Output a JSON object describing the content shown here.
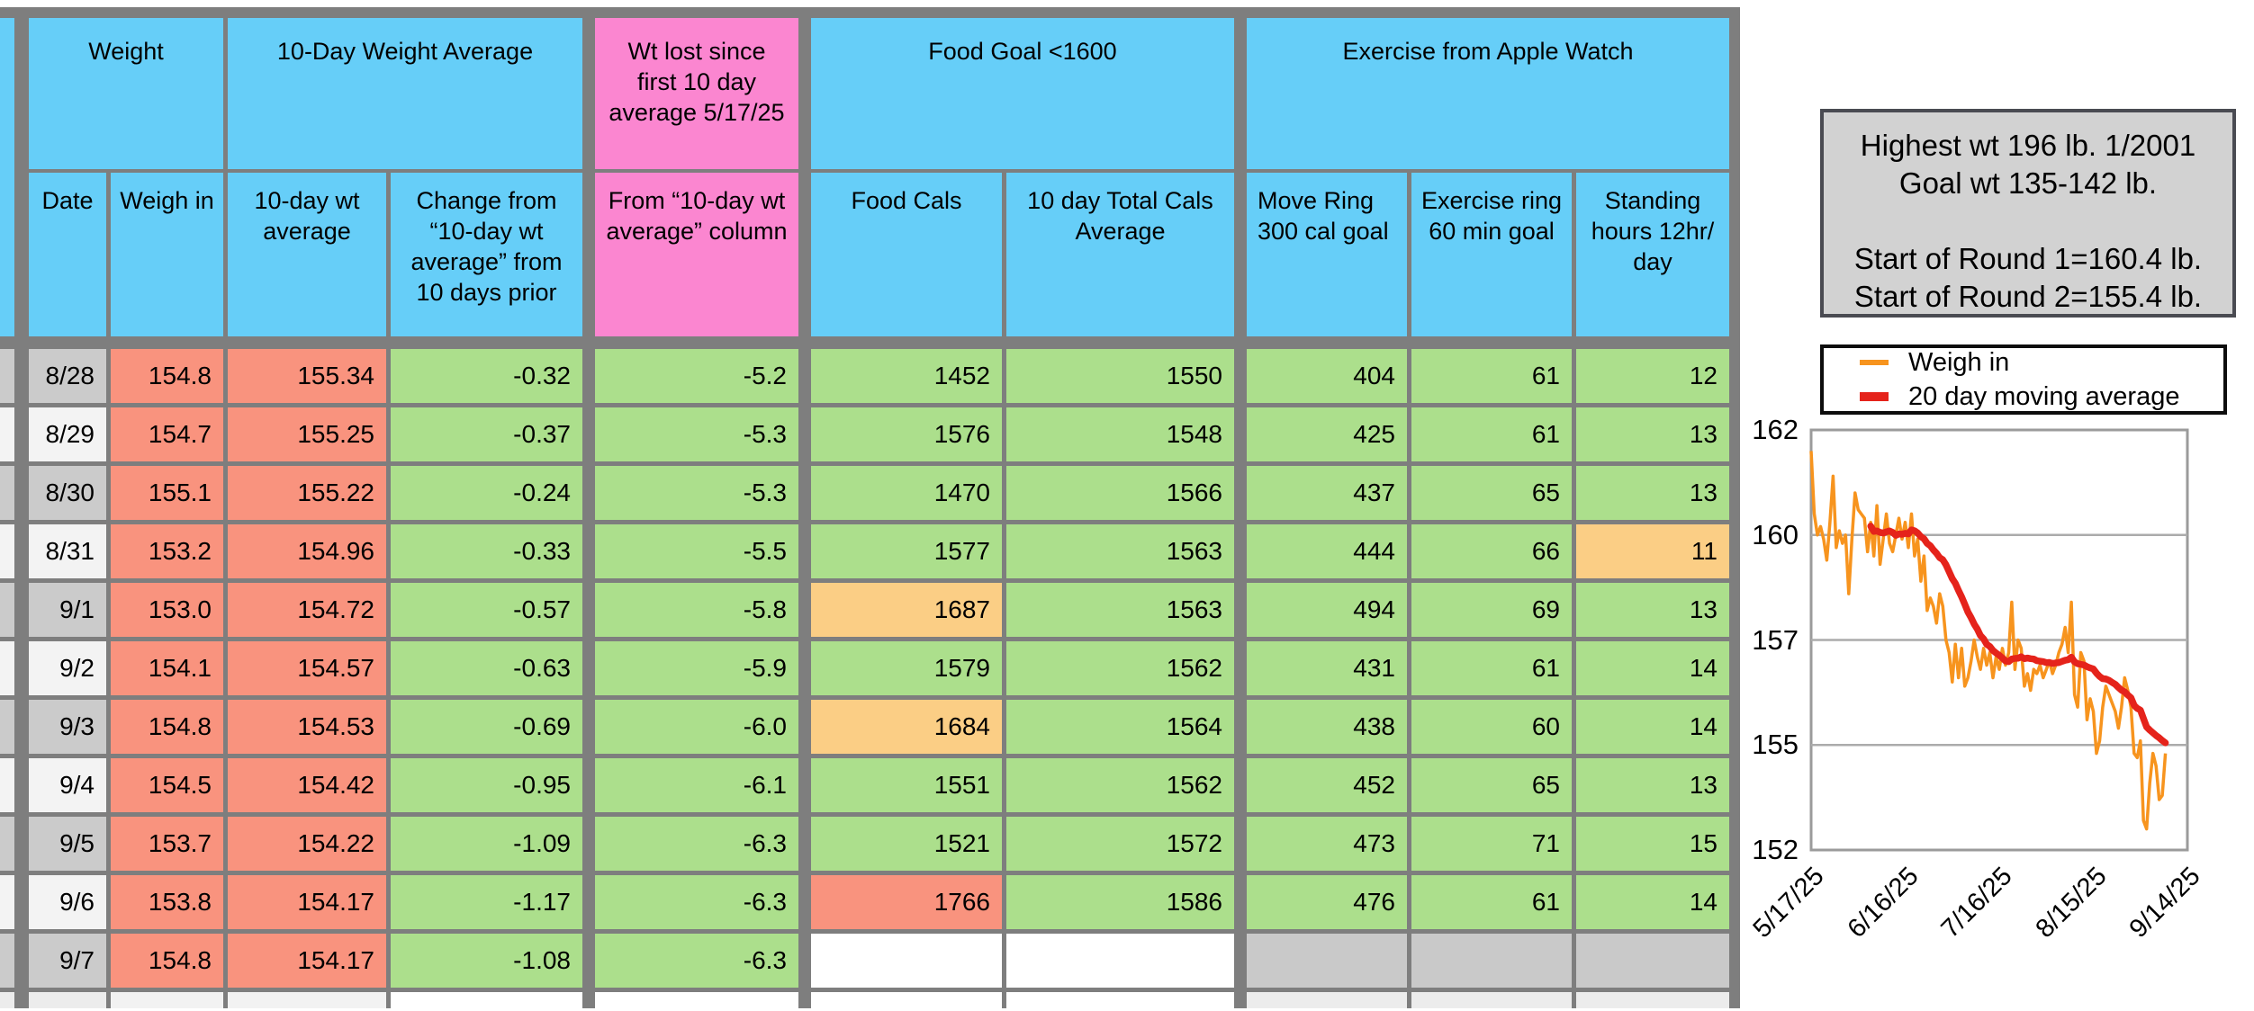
{
  "table": {
    "groups": {
      "weight": "Weight",
      "avg10": "10-Day Weight Average",
      "lost": "Wt lost since first 10 day average 5/17/25",
      "food": "Food Goal <1600",
      "exercise": "Exercise from Apple Watch"
    },
    "columns": {
      "date": "Date",
      "weigh": "Weigh in",
      "avg": "10-day wt average",
      "change": "Change from “10-day wt average” from 10 days prior",
      "lost": "From “10-day wt average” column",
      "food": "Food Cals",
      "total": "10 day Total Cals Average",
      "move": "Move Ring 300 cal goal",
      "ex": "Exercise ring 60 min goal",
      "stand": "Standing hours 12hr/ day"
    },
    "rows": [
      {
        "date": "8/28",
        "weigh": "154.8",
        "avg": "155.34",
        "change": "-0.32",
        "lost": "-5.2",
        "food": "1452",
        "total": "1550",
        "move": "404",
        "ex": "61",
        "stand": "12"
      },
      {
        "date": "8/29",
        "weigh": "154.7",
        "avg": "155.25",
        "change": "-0.37",
        "lost": "-5.3",
        "food": "1576",
        "total": "1548",
        "move": "425",
        "ex": "61",
        "stand": "13"
      },
      {
        "date": "8/30",
        "weigh": "155.1",
        "avg": "155.22",
        "change": "-0.24",
        "lost": "-5.3",
        "food": "1470",
        "total": "1566",
        "move": "437",
        "ex": "65",
        "stand": "13"
      },
      {
        "date": "8/31",
        "weigh": "153.2",
        "avg": "154.96",
        "change": "-0.33",
        "lost": "-5.5",
        "food": "1577",
        "total": "1563",
        "move": "444",
        "ex": "66",
        "stand": "11",
        "stand_style": "warn"
      },
      {
        "date": "9/1",
        "weigh": "153.0",
        "avg": "154.72",
        "change": "-0.57",
        "lost": "-5.8",
        "food": "1687",
        "total": "1563",
        "move": "494",
        "ex": "69",
        "stand": "13",
        "food_style": "warn"
      },
      {
        "date": "9/2",
        "weigh": "154.1",
        "avg": "154.57",
        "change": "-0.63",
        "lost": "-5.9",
        "food": "1579",
        "total": "1562",
        "move": "431",
        "ex": "61",
        "stand": "14"
      },
      {
        "date": "9/3",
        "weigh": "154.8",
        "avg": "154.53",
        "change": "-0.69",
        "lost": "-6.0",
        "food": "1684",
        "total": "1564",
        "move": "438",
        "ex": "60",
        "stand": "14",
        "food_style": "warn"
      },
      {
        "date": "9/4",
        "weigh": "154.5",
        "avg": "154.42",
        "change": "-0.95",
        "lost": "-6.1",
        "food": "1551",
        "total": "1562",
        "move": "452",
        "ex": "65",
        "stand": "13"
      },
      {
        "date": "9/5",
        "weigh": "153.7",
        "avg": "154.22",
        "change": "-1.09",
        "lost": "-6.3",
        "food": "1521",
        "total": "1572",
        "move": "473",
        "ex": "71",
        "stand": "15"
      },
      {
        "date": "9/6",
        "weigh": "153.8",
        "avg": "154.17",
        "change": "-1.17",
        "lost": "-6.3",
        "food": "1766",
        "total": "1586",
        "move": "476",
        "ex": "61",
        "stand": "14",
        "food_style": "alert"
      },
      {
        "date": "9/7",
        "weigh": "154.8",
        "avg": "154.17",
        "change": "-1.08",
        "lost": "-6.3",
        "food": "",
        "total": "",
        "move": "",
        "ex": "",
        "stand": "",
        "food_style": "blank",
        "total_style": "blank",
        "move_style": "empty",
        "ex_style": "empty",
        "stand_style": "empty"
      }
    ],
    "colors": {
      "header_blue": "#66CEF8",
      "header_pink": "#FB86D0",
      "weight_salmon": "#F9937E",
      "ok_green": "#ACDF8C",
      "warn_orange": "#FBCE85",
      "over_salmon": "#F9937E",
      "date_gray": "#CBCBCB",
      "date_light": "#F3F3F3",
      "empty_gray": "#C9C9C9",
      "grid_gray": "#7E7E7E"
    }
  },
  "info_box": {
    "lines": [
      "Highest wt 196 lb.  1/2001",
      "Goal wt 135-142 lb.",
      "",
      "Start of Round 1=160.4 lb.",
      "Start of Round 2=155.4 lb."
    ]
  },
  "legend": {
    "items": [
      {
        "label": "Weigh in",
        "color": "#F7941E"
      },
      {
        "label": "20 day moving average",
        "color": "#E5231B"
      }
    ]
  },
  "chart_data": {
    "type": "line",
    "title": "",
    "x_tick_labels": [
      "5/17/25",
      "6/16/25",
      "7/16/25",
      "8/15/25",
      "9/14/25"
    ],
    "x_tick_days": [
      0,
      30,
      60,
      90,
      120
    ],
    "x_total_days": 120,
    "y_axis_labels": [
      "162",
      "160",
      "157",
      "155",
      "152"
    ],
    "y_max": 162.5,
    "y_min": 152.5,
    "grid": true,
    "legend_position": "top",
    "series": [
      {
        "name": "Weigh in",
        "color": "#F7941E",
        "start_day": 0,
        "values": [
          162.0,
          160.5,
          160.0,
          160.2,
          159.9,
          159.4,
          160.3,
          161.4,
          159.7,
          160.1,
          159.8,
          160.0,
          158.6,
          159.9,
          161.0,
          160.6,
          160.5,
          160.4,
          159.6,
          160.3,
          159.5,
          160.7,
          159.3,
          159.9,
          160.5,
          159.8,
          159.6,
          160.0,
          160.4,
          159.9,
          160.3,
          159.7,
          160.5,
          159.5,
          159.9,
          158.9,
          159.5,
          158.2,
          158.5,
          158.3,
          157.9,
          158.6,
          158.3,
          157.5,
          157.2,
          156.5,
          157.4,
          156.6,
          157.3,
          156.4,
          156.6,
          157.0,
          157.5,
          157.1,
          156.8,
          157.3,
          156.9,
          157.2,
          156.6,
          157.1,
          156.8,
          157.3,
          156.9,
          157.2,
          158.4,
          156.8,
          157.5,
          157.3,
          156.4,
          156.7,
          156.3,
          156.8,
          156.7,
          156.9,
          156.6,
          156.8,
          157.0,
          156.7,
          156.9,
          157.2,
          157.4,
          157.8,
          157.2,
          158.4,
          156.2,
          155.9,
          157.2,
          157.0,
          155.6,
          156.1,
          155.8,
          154.8,
          155.1,
          155.9,
          156.4,
          156.2,
          156.0,
          155.8,
          155.4,
          155.9,
          156.6,
          156.3,
          155.9,
          154.8,
          154.7,
          155.1,
          153.2,
          153.0,
          154.1,
          154.8,
          154.5,
          153.7,
          153.8,
          154.8
        ]
      },
      {
        "name": "20 day moving average",
        "color": "#E5231B",
        "derived_from": "Weigh in",
        "moving_average_window": 20
      }
    ]
  }
}
